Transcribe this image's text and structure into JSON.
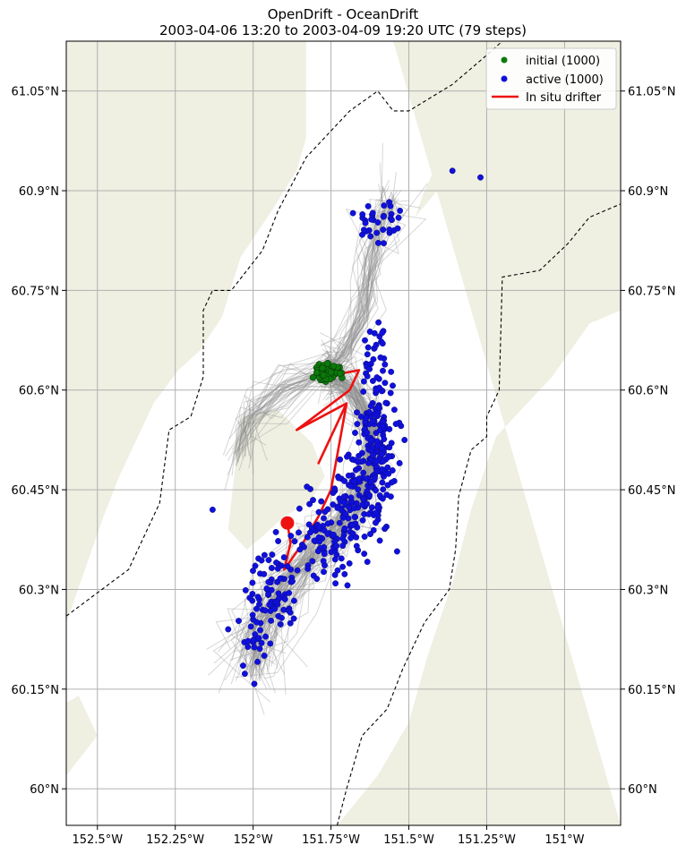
{
  "title": {
    "line1": "OpenDrift - OceanDrift",
    "line2": "2003-04-06 13:20 to 2003-04-09 19:20 UTC (79 steps)"
  },
  "colors": {
    "land": "#efefe2",
    "water": "#ffffff",
    "grid": "#b0b0b0",
    "trajectory": "#8c8c8c",
    "initial": "#0a7a0a",
    "active": "#1010dd",
    "drifter": "#ee1111",
    "border": "#000000"
  },
  "axes": {
    "lon_range": [
      -152.6,
      -150.82
    ],
    "lat_range": [
      59.945,
      61.125
    ],
    "lon_ticks": [
      {
        "value": -152.5,
        "label": "152.5°W"
      },
      {
        "value": -152.25,
        "label": "152.25°W"
      },
      {
        "value": -152.0,
        "label": "152°W"
      },
      {
        "value": -151.75,
        "label": "151.75°W"
      },
      {
        "value": -151.5,
        "label": "151.5°W"
      },
      {
        "value": -151.25,
        "label": "151.25°W"
      },
      {
        "value": -151.0,
        "label": "151°W"
      }
    ],
    "lat_ticks": [
      {
        "value": 60.0,
        "label": "60°N"
      },
      {
        "value": 60.15,
        "label": "60.15°N"
      },
      {
        "value": 60.3,
        "label": "60.3°N"
      },
      {
        "value": 60.45,
        "label": "60.45°N"
      },
      {
        "value": 60.6,
        "label": "60.6°N"
      },
      {
        "value": 60.75,
        "label": "60.75°N"
      },
      {
        "value": 60.9,
        "label": "60.9°N"
      },
      {
        "value": 61.05,
        "label": "61.05°N"
      }
    ]
  },
  "legend": {
    "position": "top-right",
    "items": [
      {
        "label": "initial (1000)",
        "kind": "initial"
      },
      {
        "label": "active (1000)",
        "kind": "active"
      },
      {
        "label": "In situ drifter",
        "kind": "drifter"
      }
    ]
  },
  "land": {
    "west": [
      [
        -152.6,
        61.125
      ],
      [
        -151.83,
        61.125
      ],
      [
        -151.83,
        60.98
      ],
      [
        -151.86,
        60.93
      ],
      [
        -151.94,
        60.87
      ],
      [
        -152.04,
        60.8
      ],
      [
        -152.1,
        60.71
      ],
      [
        -152.17,
        60.66
      ],
      [
        -152.24,
        60.63
      ],
      [
        -152.32,
        60.58
      ],
      [
        -152.37,
        60.53
      ],
      [
        -152.43,
        60.47
      ],
      [
        -152.48,
        60.41
      ],
      [
        -152.54,
        60.33
      ],
      [
        -152.6,
        60.25
      ]
    ],
    "east": [
      [
        -151.55,
        61.125
      ],
      [
        -150.82,
        61.125
      ],
      [
        -150.82,
        60.72
      ],
      [
        -150.92,
        60.7
      ],
      [
        -151.04,
        60.62
      ],
      [
        -151.22,
        60.53
      ],
      [
        -151.3,
        60.42
      ],
      [
        -151.36,
        60.31
      ],
      [
        -151.44,
        60.2
      ],
      [
        -151.5,
        60.1
      ],
      [
        -151.6,
        60.02
      ],
      [
        -151.73,
        59.945
      ],
      [
        -150.82,
        59.945
      ]
    ],
    "cape": [
      [
        -152.04,
        60.56
      ],
      [
        -151.92,
        60.57
      ],
      [
        -151.81,
        60.52
      ],
      [
        -151.77,
        60.47
      ],
      [
        -151.82,
        60.43
      ],
      [
        -151.9,
        60.41
      ],
      [
        -151.97,
        60.38
      ],
      [
        -152.02,
        60.36
      ],
      [
        -152.08,
        60.39
      ]
    ],
    "peninsula": [
      [
        -152.6,
        60.02
      ],
      [
        -152.5,
        60.08
      ],
      [
        -152.56,
        60.14
      ],
      [
        -152.6,
        60.13
      ]
    ],
    "kenai_bump": [
      [
        -151.48,
        60.86
      ],
      [
        -151.32,
        60.95
      ],
      [
        -151.25,
        61.0
      ],
      [
        -151.35,
        61.0
      ],
      [
        -151.4,
        60.95
      ],
      [
        -151.45,
        60.9
      ]
    ],
    "nikiski": [
      [
        -151.25,
        60.78
      ],
      [
        -151.1,
        60.77
      ],
      [
        -150.95,
        60.72
      ],
      [
        -151.08,
        60.68
      ],
      [
        -151.2,
        60.7
      ]
    ]
  },
  "borders": [
    [
      [
        -152.6,
        60.26
      ],
      [
        -152.4,
        60.33
      ],
      [
        -152.3,
        60.43
      ],
      [
        -152.27,
        60.54
      ],
      [
        -152.2,
        60.56
      ],
      [
        -152.16,
        60.62
      ],
      [
        -152.16,
        60.72
      ],
      [
        -152.13,
        60.75
      ],
      [
        -152.07,
        60.75
      ],
      [
        -151.97,
        60.81
      ],
      [
        -151.92,
        60.87
      ],
      [
        -151.83,
        60.95
      ],
      [
        -151.69,
        61.02
      ],
      [
        -151.6,
        61.05
      ],
      [
        -151.55,
        61.02
      ],
      [
        -151.5,
        61.02
      ],
      [
        -151.36,
        61.06
      ],
      [
        -151.26,
        61.1
      ],
      [
        -151.2,
        61.125
      ]
    ],
    [
      [
        -151.73,
        59.945
      ],
      [
        -151.7,
        60.0
      ],
      [
        -151.65,
        60.08
      ],
      [
        -151.57,
        60.12
      ],
      [
        -151.52,
        60.18
      ],
      [
        -151.45,
        60.25
      ],
      [
        -151.37,
        60.3
      ],
      [
        -151.35,
        60.36
      ],
      [
        -151.34,
        60.44
      ],
      [
        -151.3,
        60.51
      ],
      [
        -151.25,
        60.53
      ],
      [
        -151.25,
        60.56
      ],
      [
        -151.21,
        60.6
      ],
      [
        -151.2,
        60.77
      ],
      [
        -151.08,
        60.78
      ],
      [
        -150.99,
        60.82
      ],
      [
        -150.92,
        60.86
      ],
      [
        -150.82,
        60.88
      ]
    ]
  ],
  "drifter": [
    [
      -151.77,
      60.62
    ],
    [
      -151.66,
      60.63
    ],
    [
      -151.69,
      60.6
    ],
    [
      -151.86,
      60.54
    ],
    [
      -151.7,
      60.58
    ],
    [
      -151.79,
      60.49
    ],
    [
      -151.7,
      60.58
    ],
    [
      -151.75,
      60.45
    ],
    [
      -151.79,
      60.41
    ],
    [
      -151.84,
      60.37
    ],
    [
      -151.9,
      60.33
    ],
    [
      -151.88,
      60.37
    ],
    [
      -151.89,
      60.4
    ]
  ],
  "drifter_end": [
    -151.89,
    60.4
  ],
  "initial_center": [
    -151.765,
    60.626
  ],
  "active_clusters": [
    {
      "lon": -151.6,
      "lat": 60.53,
      "slon": 0.03,
      "slat": 0.06,
      "n": 160
    },
    {
      "lon": -151.66,
      "lat": 60.44,
      "slon": 0.045,
      "slat": 0.04,
      "n": 110
    },
    {
      "lon": -151.77,
      "lat": 60.38,
      "slon": 0.05,
      "slat": 0.03,
      "n": 90
    },
    {
      "lon": -151.93,
      "lat": 60.3,
      "slon": 0.035,
      "slat": 0.03,
      "n": 70
    },
    {
      "lon": -152.0,
      "lat": 60.24,
      "slon": 0.025,
      "slat": 0.035,
      "n": 30
    },
    {
      "lon": -151.6,
      "lat": 60.85,
      "slon": 0.04,
      "slat": 0.025,
      "n": 35
    },
    {
      "lon": -151.6,
      "lat": 60.66,
      "slon": 0.02,
      "slat": 0.03,
      "n": 20
    }
  ],
  "trajectory_count": 180
}
